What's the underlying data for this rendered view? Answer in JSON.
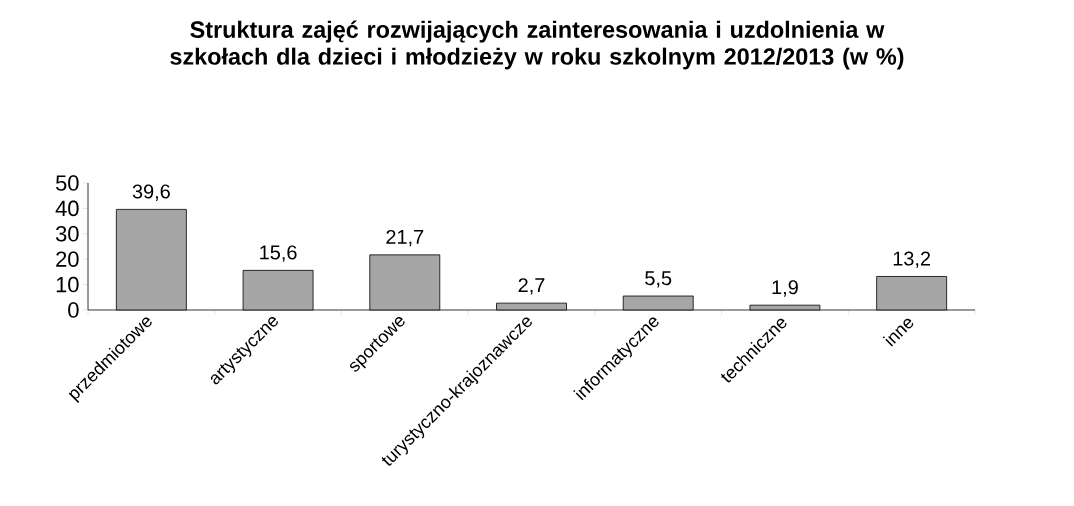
{
  "chart_data": {
    "type": "bar",
    "title": "Struktura zajęć rozwijających zainteresowania i uzdolnienia w szkołach dla dzieci i młodzieży w roku szkolnym 2012/2013 (w %)",
    "categories": [
      "przedmiotowe",
      "artystyczne",
      "sportowe",
      "turystyczno-krajoznawcze",
      "informatyczne",
      "techniczne",
      "inne"
    ],
    "values": [
      39.6,
      15.6,
      21.7,
      2.7,
      5.5,
      1.9,
      13.2
    ],
    "value_labels": [
      "39,6",
      "15,6",
      "21,7",
      "2,7",
      "5,5",
      "1,9",
      "13,2"
    ],
    "color": "#a6a6a6",
    "ylim": [
      0,
      50
    ],
    "yticks": [
      0,
      10,
      20,
      30,
      40,
      50
    ]
  }
}
